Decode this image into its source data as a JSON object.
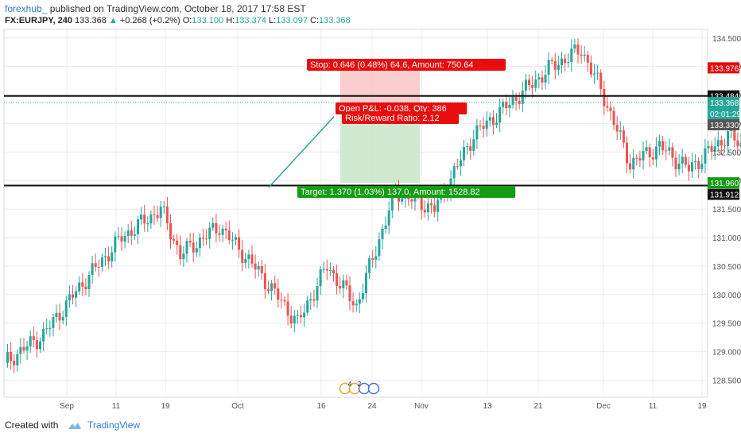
{
  "header": {
    "author": "forexhub_",
    "published": "published on TradingView.com, October 18, 2017 17:58 EST",
    "symbol": "FX:EURJPY, 240",
    "last": "133.368",
    "change": "+0.268 (+0.2%)",
    "o_label": "O:",
    "o": "133.100",
    "h_label": "H:",
    "h": "133.374",
    "l_label": "L:",
    "l": "133.097",
    "c_label": "C:",
    "c": "133.368"
  },
  "footer": {
    "created": "Created with",
    "brand": "TradingView"
  },
  "colors": {
    "up": "#26a69a",
    "down": "#ef5350",
    "stop_fill": "#f9c5c5",
    "target_fill": "#c8e6c9",
    "stop_label": "#e80c0c",
    "target_label": "#139d13",
    "grid": "#ececec",
    "axis_text": "#555555"
  },
  "chart_data": {
    "type": "candlestick",
    "ylim": [
      128.2,
      134.65
    ],
    "y_ticks": [
      "128.500",
      "129.000",
      "129.500",
      "130.000",
      "130.500",
      "131.000",
      "131.500",
      "132.000",
      "132.500",
      "133.000",
      "133.500",
      "134.000",
      "134.500"
    ],
    "x_ticks": [
      "Sep",
      "11",
      "19",
      "Oct",
      "16",
      "24",
      "Nov",
      "13",
      "21",
      "Dec",
      "11",
      "19"
    ],
    "close_path": [
      [
        0,
        128.8
      ],
      [
        4,
        129.3
      ],
      [
        8,
        130.2
      ],
      [
        12,
        131.0
      ],
      [
        16,
        131.5
      ],
      [
        18,
        130.7
      ],
      [
        22,
        131.2
      ],
      [
        26,
        130.4
      ],
      [
        30,
        129.5
      ],
      [
        33,
        130.5
      ],
      [
        36,
        129.8
      ],
      [
        40,
        131.8
      ],
      [
        44,
        131.5
      ],
      [
        48,
        132.8
      ],
      [
        52,
        133.4
      ],
      [
        56,
        134.0
      ],
      [
        59,
        134.3
      ],
      [
        61,
        133.6
      ],
      [
        64,
        132.3
      ],
      [
        67,
        132.6
      ],
      [
        70,
        132.2
      ],
      [
        74,
        132.8
      ],
      [
        77,
        132.4
      ],
      [
        80,
        132.7
      ],
      [
        84,
        132.3
      ],
      [
        88,
        132.1
      ],
      [
        91,
        132.6
      ],
      [
        94,
        133.5
      ],
      [
        96,
        132.9
      ],
      [
        98,
        132.3
      ],
      [
        100,
        132.0
      ],
      [
        101,
        132.8
      ],
      [
        103,
        133.368
      ]
    ],
    "annotations": [
      {
        "type": "hline",
        "value": 133.484,
        "label": "133.484"
      },
      {
        "type": "hline",
        "value": 131.912,
        "label": "131.912"
      }
    ],
    "price_labels": [
      "133.976",
      "133.484",
      "133.368",
      "02:01:29",
      "133.330",
      "131.960",
      "131.912"
    ],
    "position": {
      "type": "long",
      "stop_text": "Stop: 0.646 (0.48%) 64.6, Amount: 750.64",
      "pnl_text": "Open P&L: -0.038, Qty: 386",
      "rr_text": "Risk/Reward Ratio: 2.12",
      "target_text": "Target: 1.370 (1.03%) 137.0, Amount: 1528.82",
      "entry": 133.33,
      "stop": 133.976,
      "target": 131.96
    },
    "event_badges": [
      "4",
      "2"
    ]
  }
}
